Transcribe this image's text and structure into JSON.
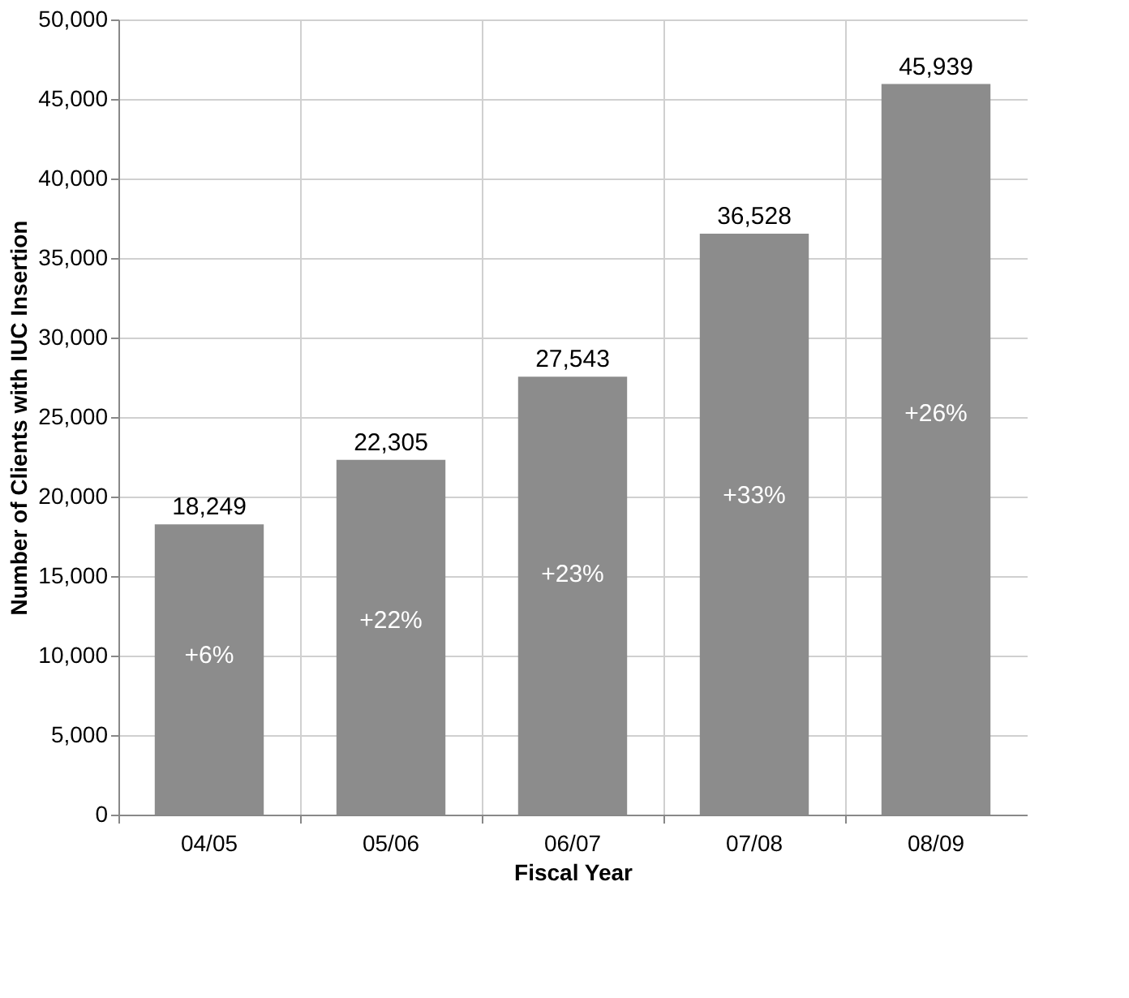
{
  "chart_data": {
    "type": "bar",
    "xlabel": "Fiscal Year",
    "ylabel": "Number of Clients with IUC Insertion",
    "categories": [
      "04/05",
      "05/06",
      "06/07",
      "07/08",
      "08/09"
    ],
    "values": [
      18249,
      22305,
      27543,
      36528,
      45939
    ],
    "color": "#8c8c8c",
    "value_labels": [
      "18,249",
      "22,305",
      "27,543",
      "36,528",
      "45,939"
    ],
    "ylim": [
      0,
      50000
    ],
    "yticks": [
      0,
      {
        "value": 5000,
        "label": "5,000"
      },
      {
        "value": 10000,
        "label": "10,000"
      },
      {
        "value": 15000,
        "label": "15,000"
      },
      {
        "value": 20000,
        "label": "20,000"
      },
      {
        "value": 25000,
        "label": "25,000"
      },
      {
        "value": 30000,
        "label": "30,000"
      },
      {
        "value": 35000,
        "label": "35,000"
      },
      {
        "value": 40000,
        "label": "40,000"
      },
      {
        "value": 45000,
        "label": "45,000"
      },
      {
        "value": 50000,
        "label": "50,000"
      }
    ],
    "grid": true,
    "annotations": [
      "+6%",
      "+22%",
      "+23%",
      "+33%",
      "+26%"
    ]
  }
}
